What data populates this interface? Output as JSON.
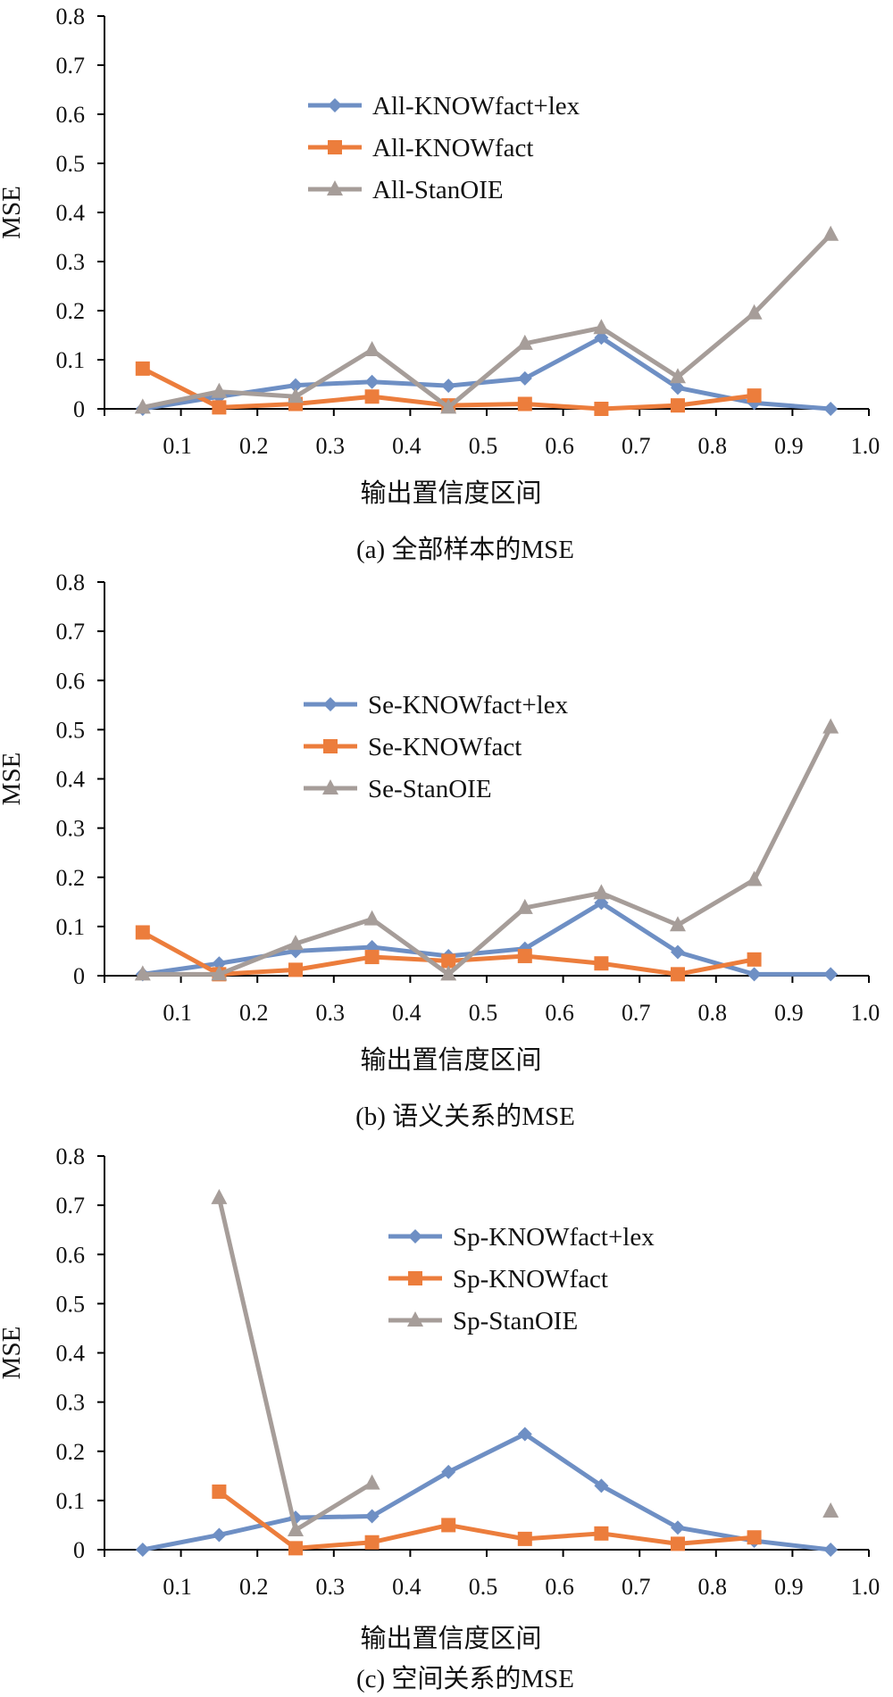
{
  "colors": {
    "fact_lex": "#6e8fc4",
    "fact": "#ec7d3c",
    "stanoie": "#a69d99",
    "axis": "#000000"
  },
  "chart_data": [
    {
      "type": "line",
      "caption": "(a)  全部样本的MSE",
      "xlabel": "输出置信度区间",
      "ylabel": "MSE",
      "xlim": [
        0.0,
        1.0
      ],
      "ylim": [
        0.0,
        0.8
      ],
      "xticks": [
        "0.1",
        "0.2",
        "0.3",
        "0.4",
        "0.5",
        "0.6",
        "0.7",
        "0.8",
        "0.9",
        "1.0"
      ],
      "yticks": [
        "0",
        "0.1",
        "0.2",
        "0.3",
        "0.4",
        "0.5",
        "0.6",
        "0.7",
        "0.8"
      ],
      "legend": "top-center",
      "grid": false,
      "series": [
        {
          "name": "All-KNOWfact+lex",
          "color_key": "fact_lex",
          "marker": "diamond",
          "x": [
            0.05,
            0.15,
            0.25,
            0.35,
            0.45,
            0.55,
            0.65,
            0.75,
            0.85,
            0.95
          ],
          "y": [
            0.0,
            0.025,
            0.048,
            0.055,
            0.047,
            0.062,
            0.145,
            0.043,
            0.012,
            0.0
          ]
        },
        {
          "name": "All-KNOWfact",
          "color_key": "fact",
          "marker": "square",
          "x": [
            0.05,
            0.15,
            0.25,
            0.35,
            0.45,
            0.55,
            0.65,
            0.75,
            0.85
          ],
          "y": [
            0.082,
            0.003,
            0.01,
            0.025,
            0.007,
            0.01,
            0.0,
            0.007,
            0.027
          ]
        },
        {
          "name": "All-StanOIE",
          "color_key": "stanoie",
          "marker": "triangle",
          "x": [
            0.05,
            0.15,
            0.25,
            0.35,
            0.45,
            0.55,
            0.65,
            0.75,
            0.85,
            0.95
          ],
          "y": [
            0.003,
            0.035,
            0.025,
            0.12,
            0.003,
            0.133,
            0.165,
            0.065,
            0.195,
            0.355
          ]
        }
      ]
    },
    {
      "type": "line",
      "caption": "(b) 语义关系的MSE",
      "xlabel": "输出置信度区间",
      "ylabel": "MSE",
      "xlim": [
        0.0,
        1.0
      ],
      "ylim": [
        0.0,
        0.8
      ],
      "xticks": [
        "0.1",
        "0.2",
        "0.3",
        "0.4",
        "0.5",
        "0.6",
        "0.7",
        "0.8",
        "0.9",
        "1.0"
      ],
      "yticks": [
        "0",
        "0.1",
        "0.2",
        "0.3",
        "0.4",
        "0.5",
        "0.6",
        "0.7",
        "0.8"
      ],
      "legend": "top-center",
      "grid": false,
      "series": [
        {
          "name": "Se-KNOWfact+lex",
          "color_key": "fact_lex",
          "marker": "diamond",
          "x": [
            0.05,
            0.15,
            0.25,
            0.35,
            0.45,
            0.55,
            0.65,
            0.75,
            0.85,
            0.95
          ],
          "y": [
            0.003,
            0.025,
            0.05,
            0.058,
            0.04,
            0.055,
            0.148,
            0.048,
            0.003,
            0.003
          ]
        },
        {
          "name": "Se-KNOWfact",
          "color_key": "fact",
          "marker": "square",
          "x": [
            0.05,
            0.15,
            0.25,
            0.35,
            0.45,
            0.55,
            0.65,
            0.75,
            0.85
          ],
          "y": [
            0.088,
            0.003,
            0.012,
            0.038,
            0.03,
            0.04,
            0.025,
            0.003,
            0.033
          ]
        },
        {
          "name": "Se-StanOIE",
          "color_key": "stanoie",
          "marker": "triangle",
          "x": [
            0.05,
            0.15,
            0.25,
            0.35,
            0.45,
            0.55,
            0.65,
            0.75,
            0.85,
            0.95
          ],
          "y": [
            0.003,
            0.003,
            0.065,
            0.115,
            0.003,
            0.138,
            0.168,
            0.103,
            0.195,
            0.505
          ]
        }
      ]
    },
    {
      "type": "line",
      "caption": "(c) 空间关系的MSE",
      "xlabel": "输出置信度区间",
      "ylabel": "MSE",
      "xlim": [
        0.0,
        1.0
      ],
      "ylim": [
        0.0,
        0.8
      ],
      "xticks": [
        "0.1",
        "0.2",
        "0.3",
        "0.4",
        "0.5",
        "0.6",
        "0.7",
        "0.8",
        "0.9",
        "1.0"
      ],
      "yticks": [
        "0",
        "0.1",
        "0.2",
        "0.3",
        "0.4",
        "0.5",
        "0.6",
        "0.7",
        "0.8"
      ],
      "legend": "top-center",
      "grid": false,
      "series": [
        {
          "name": "Sp-KNOWfact+lex",
          "color_key": "fact_lex",
          "marker": "diamond",
          "x": [
            0.05,
            0.15,
            0.25,
            0.35,
            0.45,
            0.55,
            0.65,
            0.75,
            0.85,
            0.95
          ],
          "y": [
            0.0,
            0.03,
            0.065,
            0.068,
            0.158,
            0.235,
            0.13,
            0.045,
            0.018,
            0.0
          ],
          "segments": [
            [
              0,
              9
            ]
          ]
        },
        {
          "name": "Sp-KNOWfact",
          "color_key": "fact",
          "marker": "square",
          "x": [
            0.15,
            0.25,
            0.35,
            0.45,
            0.55,
            0.65,
            0.75,
            0.85
          ],
          "y": [
            0.118,
            0.003,
            0.015,
            0.05,
            0.022,
            0.033,
            0.012,
            0.025
          ],
          "segments": [
            [
              0,
              7
            ]
          ]
        },
        {
          "name": "Sp-StanOIE",
          "color_key": "stanoie",
          "marker": "triangle",
          "x": [
            0.15,
            0.25,
            0.35,
            0.95
          ],
          "y": [
            0.715,
            0.04,
            0.135,
            0.078
          ],
          "segments": [
            [
              0,
              2
            ]
          ]
        }
      ]
    }
  ]
}
